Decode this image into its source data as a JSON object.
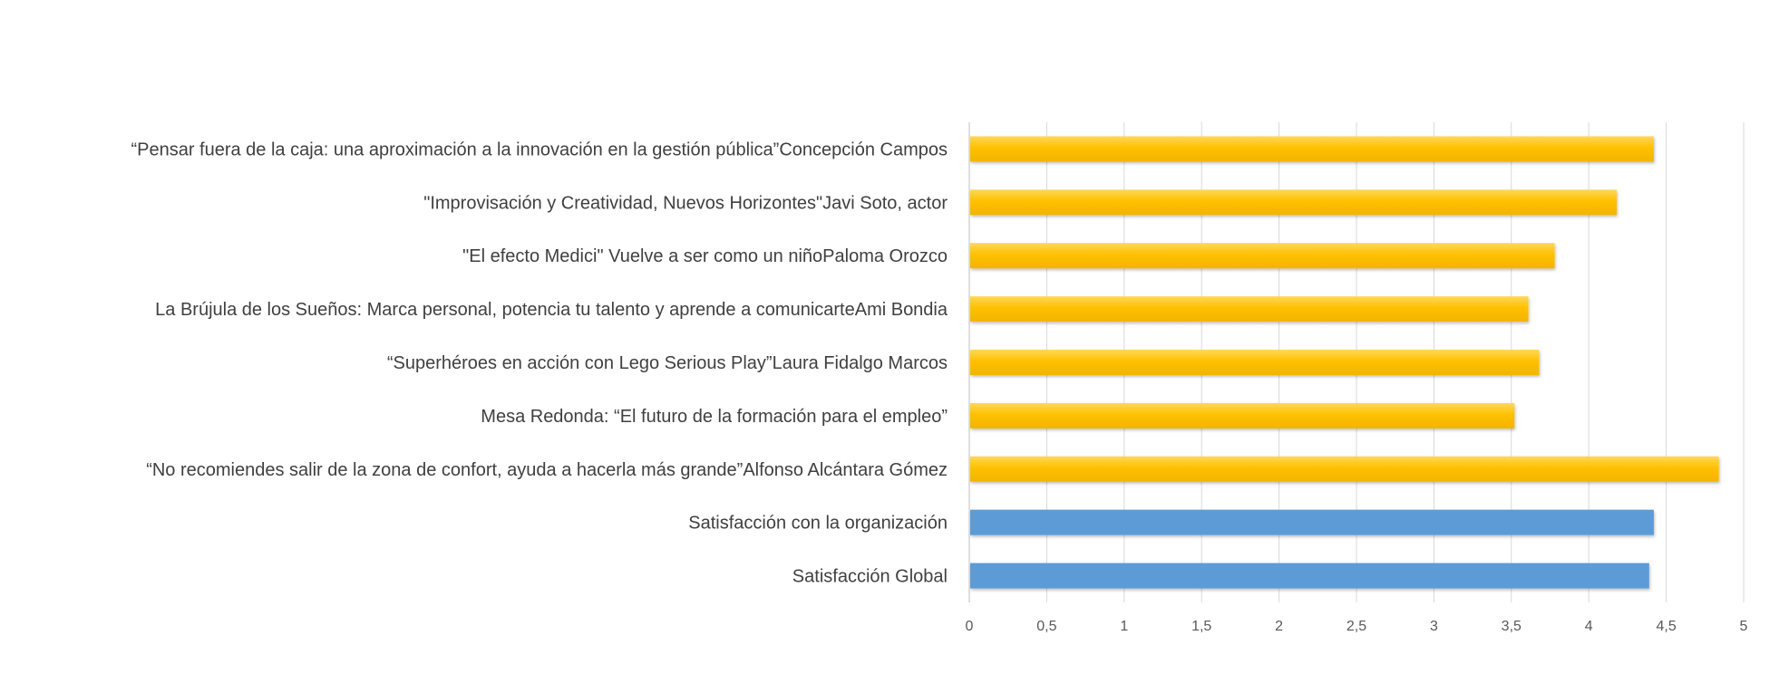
{
  "chart_data": {
    "type": "bar",
    "orientation": "horizontal",
    "categories": [
      "“Pensar fuera de la caja: una aproximación a la innovación en la gestión pública”Concepción Campos",
      "\"Improvisación y Creatividad, Nuevos Horizontes\"Javi Soto, actor",
      "\"El efecto Medici\" Vuelve a ser como un niñoPaloma Orozco",
      "La Brújula de los Sueños: Marca personal, potencia tu talento y aprende a comunicarteAmi Bondia",
      "“Superhéroes en acción con Lego Serious Play”Laura Fidalgo Marcos",
      "Mesa Redonda: “El futuro de la formación para el empleo”",
      "“No recomiendes salir de la zona de confort, ayuda a hacerla más grande”Alfonso Alcántara Gómez",
      "Satisfacción con la organización",
      "Satisfacción Global"
    ],
    "values": [
      4.42,
      4.18,
      3.78,
      3.61,
      3.68,
      3.52,
      4.84,
      4.42,
      4.39
    ],
    "bar_colors": [
      "#FFC000",
      "#FFC000",
      "#FFC000",
      "#FFC000",
      "#FFC000",
      "#FFC000",
      "#FFC000",
      "#5B9BD5",
      "#5B9BD5"
    ],
    "x_ticks": [
      "0",
      "0,5",
      "1",
      "1,5",
      "2",
      "2,5",
      "3",
      "3,5",
      "4",
      "4,5",
      "5"
    ],
    "xlim": [
      0,
      5
    ],
    "title": "",
    "xlabel": "",
    "ylabel": "",
    "grid": "vertical",
    "legend": "none"
  }
}
